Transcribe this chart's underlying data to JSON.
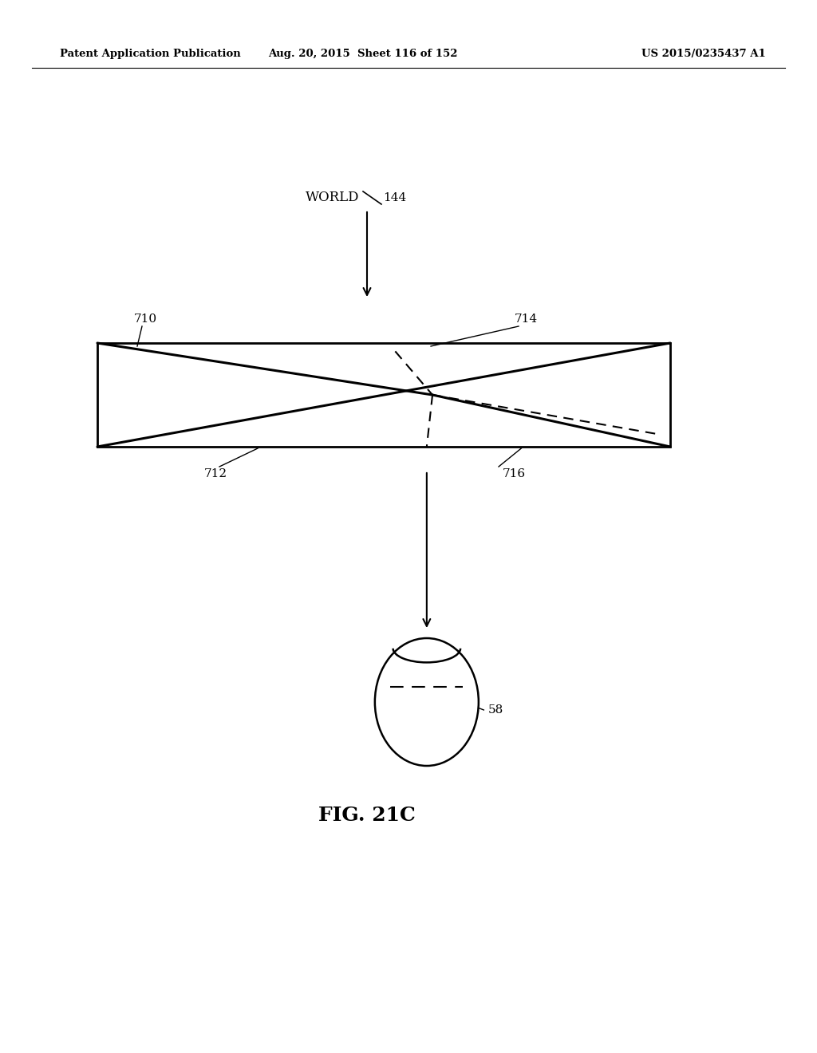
{
  "header_left": "Patent Application Publication",
  "header_mid": "Aug. 20, 2015  Sheet 116 of 152",
  "header_right": "US 2015/0235437 A1",
  "world_label": "WORLD",
  "world_num": "144",
  "box_label": "710",
  "label_712": "712",
  "label_714": "714",
  "label_716": "716",
  "eye_label": "58",
  "fig_caption": "FIG. 21C",
  "bg_color": "#ffffff",
  "line_color": "#000000"
}
